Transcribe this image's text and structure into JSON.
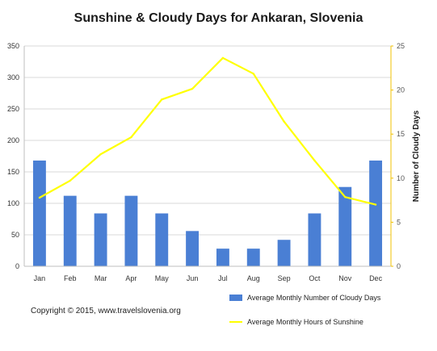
{
  "chart_data": {
    "type": "bar+line",
    "title": "Sunshine & Cloudy Days for Ankaran, Slovenia",
    "categories": [
      "Jan",
      "Feb",
      "Mar",
      "Apr",
      "May",
      "Jun",
      "Jul",
      "Aug",
      "Sep",
      "Oct",
      "Nov",
      "Dec"
    ],
    "series": [
      {
        "name": "Average Monthly Number of Cloudy Days",
        "type": "bar",
        "axis": "right",
        "color": "#4a7fd4",
        "values": [
          12,
          8,
          6,
          8,
          6,
          4,
          2,
          2,
          3,
          6,
          9,
          12
        ]
      },
      {
        "name": "Average Monthly Hours of Sunshine",
        "type": "line",
        "axis": "left",
        "color": "#ffff00",
        "values": [
          109,
          136,
          178,
          205,
          265,
          282,
          331,
          306,
          230,
          168,
          110,
          98
        ]
      }
    ],
    "y_left": {
      "label": "",
      "range": [
        0,
        350
      ],
      "ticks": [
        "0",
        "50",
        "100",
        "150",
        "200",
        "250",
        "300",
        "350"
      ]
    },
    "y_right": {
      "label": "Number of Cloudy Days",
      "range": [
        0,
        25
      ],
      "ticks": [
        "0",
        "5",
        "10",
        "15",
        "20",
        "25"
      ]
    },
    "grid": true,
    "legend_position": "bottom-right"
  },
  "copyright": "Copyright © 2015, www.travelslovenia.org"
}
